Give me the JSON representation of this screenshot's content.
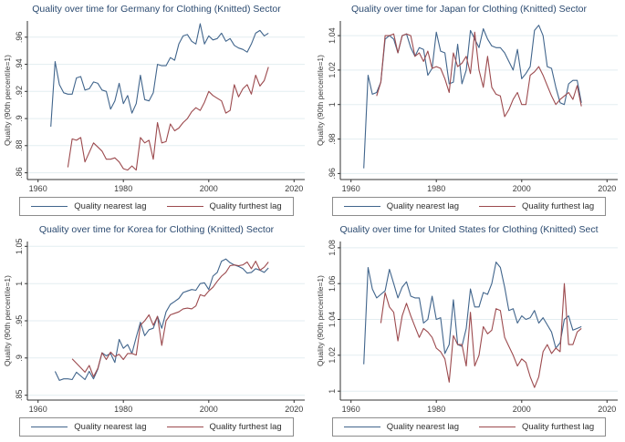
{
  "colors": {
    "background": "#ffffff",
    "title": "#2b4a70",
    "axis": "#333333",
    "tick_text": "#3c3c3c",
    "grid": "#e3edf1",
    "legend_border": "#8c8c8c",
    "nearest": "#41658c",
    "furthest": "#9c4a4e"
  },
  "legend": {
    "nearest_label": "Quality nearest lag",
    "furthest_label": "Quality furthest lag"
  },
  "chart_data": [
    {
      "type": "line",
      "title": "Quality over time for Germany for Clothing (Knitted) Sector",
      "xlabel": "",
      "ylabel": "Quality (90th percentile=1)",
      "xlim": [
        1957.5,
        2022.5
      ],
      "ylim": [
        0.855,
        0.972
      ],
      "xticks": [
        1960,
        1980,
        2000,
        2020
      ],
      "yticks": [
        0.86,
        0.88,
        0.9,
        0.92,
        0.94,
        0.96
      ],
      "ytick_labels": [
        ".86",
        ".88",
        ".9",
        ".92",
        ".94",
        ".96"
      ],
      "grid": "horizontal",
      "legend_position": "bottom",
      "series": [
        {
          "name": "Quality nearest lag",
          "color": "#41658c",
          "start_year": 1963,
          "values": [
            0.894,
            0.942,
            0.925,
            0.919,
            0.918,
            0.918,
            0.93,
            0.931,
            0.921,
            0.922,
            0.927,
            0.926,
            0.921,
            0.92,
            0.907,
            0.913,
            0.926,
            0.911,
            0.917,
            0.904,
            0.911,
            0.932,
            0.914,
            0.913,
            0.919,
            0.94,
            0.939,
            0.939,
            0.945,
            0.943,
            0.955,
            0.961,
            0.962,
            0.957,
            0.955,
            0.97,
            0.955,
            0.961,
            0.958,
            0.959,
            0.963,
            0.957,
            0.959,
            0.954,
            0.952,
            0.951,
            0.949,
            0.955,
            0.963,
            0.965,
            0.961,
            0.963
          ]
        },
        {
          "name": "Quality furthest lag",
          "color": "#9c4a4e",
          "start_year": 1967,
          "values": [
            0.864,
            0.885,
            0.884,
            0.886,
            0.868,
            0.875,
            0.882,
            0.879,
            0.876,
            0.87,
            0.87,
            0.871,
            0.868,
            0.863,
            0.862,
            0.865,
            0.862,
            0.886,
            0.882,
            0.884,
            0.87,
            0.897,
            0.882,
            0.883,
            0.896,
            0.891,
            0.893,
            0.897,
            0.9,
            0.905,
            0.908,
            0.906,
            0.912,
            0.92,
            0.917,
            0.915,
            0.913,
            0.904,
            0.906,
            0.925,
            0.916,
            0.922,
            0.925,
            0.918,
            0.932,
            0.924,
            0.928,
            0.938
          ]
        }
      ]
    },
    {
      "type": "line",
      "title": "Quality over time for Japan for Clothing (Knitted) Sector",
      "xlabel": "",
      "ylabel": "Quality (90th percentile=1)",
      "xlim": [
        1957.5,
        2022.5
      ],
      "ylim": [
        0.9565,
        1.0485
      ],
      "xticks": [
        1960,
        1980,
        2000,
        2020
      ],
      "yticks": [
        0.96,
        0.98,
        1.0,
        1.02,
        1.04
      ],
      "ytick_labels": [
        ".96",
        ".98",
        "1",
        "1.02",
        "1.04"
      ],
      "grid": "horizontal",
      "legend_position": "bottom",
      "series": [
        {
          "name": "Quality nearest lag",
          "color": "#41658c",
          "start_year": 1963,
          "values": [
            0.963,
            1.017,
            1.006,
            1.007,
            1.013,
            1.038,
            1.04,
            1.038,
            1.03,
            1.04,
            1.041,
            1.033,
            1.028,
            1.033,
            1.032,
            1.017,
            1.021,
            1.042,
            1.031,
            1.03,
            1.012,
            1.013,
            1.035,
            1.012,
            1.02,
            1.043,
            1.038,
            1.033,
            1.044,
            1.038,
            1.034,
            1.033,
            1.033,
            1.03,
            1.025,
            1.02,
            1.032,
            1.015,
            1.018,
            1.022,
            1.043,
            1.046,
            1.04,
            1.022,
            1.021,
            1.01,
            1.001,
            1.0,
            1.012,
            1.014,
            1.014,
            1.001
          ]
        },
        {
          "name": "Quality furthest lag",
          "color": "#9c4a4e",
          "start_year": 1966,
          "values": [
            1.005,
            1.013,
            1.04,
            1.04,
            1.041,
            1.03,
            1.04,
            1.041,
            1.04,
            1.028,
            1.03,
            1.025,
            1.031,
            1.021,
            1.022,
            1.021,
            1.015,
            1.007,
            1.03,
            1.022,
            1.024,
            1.028,
            1.018,
            1.042,
            1.02,
            1.01,
            1.028,
            1.01,
            1.006,
            1.005,
            0.993,
            0.997,
            1.003,
            1.007,
            1.0,
            1.0,
            1.017,
            1.019,
            1.022,
            1.017,
            1.011,
            1.005,
            1.0,
            1.003,
            1.005,
            1.007,
            1.003,
            1.011,
            0.999
          ]
        }
      ]
    },
    {
      "type": "line",
      "title": "Quality over time for Korea for Clothing (Knitted) Sector",
      "xlabel": "",
      "ylabel": "Quality (90th percentile=1)",
      "xlim": [
        1957.5,
        2022.5
      ],
      "ylim": [
        0.8435,
        1.0565
      ],
      "xticks": [
        1960,
        1980,
        2000,
        2020
      ],
      "yticks": [
        0.85,
        0.9,
        0.95,
        1.0,
        1.05
      ],
      "ytick_labels": [
        ".85",
        ".9",
        ".95",
        "1",
        "1.05"
      ],
      "grid": "horizontal",
      "legend_position": "bottom",
      "series": [
        {
          "name": "Quality nearest lag",
          "color": "#41658c",
          "start_year": 1964,
          "values": [
            0.882,
            0.87,
            0.872,
            0.872,
            0.871,
            0.881,
            0.876,
            0.871,
            0.882,
            0.872,
            0.885,
            0.907,
            0.903,
            0.906,
            0.894,
            0.925,
            0.913,
            0.918,
            0.906,
            0.928,
            0.948,
            0.93,
            0.938,
            0.94,
            0.956,
            0.94,
            0.962,
            0.972,
            0.976,
            0.98,
            0.988,
            0.99,
            0.992,
            0.991,
            1.0,
            1.001,
            0.992,
            1.01,
            1.015,
            1.03,
            1.033,
            1.028,
            1.025,
            1.023,
            1.02,
            1.014,
            1.015,
            1.02,
            1.018,
            1.015,
            1.021
          ]
        },
        {
          "name": "Quality furthest lag",
          "color": "#9c4a4e",
          "start_year": 1968,
          "values": [
            0.899,
            0.893,
            0.887,
            0.881,
            0.89,
            0.875,
            0.886,
            0.907,
            0.898,
            0.908,
            0.902,
            0.905,
            0.898,
            0.906,
            0.906,
            0.904,
            0.944,
            0.95,
            0.958,
            0.944,
            0.956,
            0.917,
            0.95,
            0.958,
            0.96,
            0.962,
            0.966,
            0.967,
            0.966,
            0.97,
            0.985,
            0.983,
            0.99,
            0.995,
            1.003,
            1.01,
            1.015,
            1.024,
            1.025,
            1.024,
            1.025,
            1.029,
            1.02,
            1.03,
            1.018,
            1.022,
            1.029
          ]
        }
      ]
    },
    {
      "type": "line",
      "title": "Quality over time for United States for Clothing (Knitted) Sect",
      "xlabel": "",
      "ylabel": "Quality (90th percentile=1)",
      "xlim": [
        1957.5,
        2022.5
      ],
      "ylim": [
        0.995,
        1.0835
      ],
      "xticks": [
        1960,
        1980,
        2000,
        2020
      ],
      "yticks": [
        1.0,
        1.02,
        1.04,
        1.06,
        1.08
      ],
      "ytick_labels": [
        "1",
        "1.02",
        "1.04",
        "1.06",
        "1.08"
      ],
      "grid": "horizontal",
      "legend_position": "bottom",
      "series": [
        {
          "name": "Quality nearest lag",
          "color": "#41658c",
          "start_year": 1963,
          "values": [
            1.015,
            1.069,
            1.057,
            1.052,
            1.054,
            1.056,
            1.068,
            1.06,
            1.052,
            1.058,
            1.061,
            1.053,
            1.052,
            1.052,
            1.038,
            1.04,
            1.053,
            1.04,
            1.041,
            1.021,
            1.026,
            1.051,
            1.026,
            1.025,
            1.035,
            1.057,
            1.047,
            1.047,
            1.055,
            1.054,
            1.06,
            1.072,
            1.069,
            1.058,
            1.045,
            1.046,
            1.038,
            1.042,
            1.04,
            1.041,
            1.045,
            1.038,
            1.041,
            1.037,
            1.033,
            1.024,
            1.027,
            1.04,
            1.042,
            1.034,
            1.035,
            1.036
          ]
        },
        {
          "name": "Quality furthest lag",
          "color": "#9c4a4e",
          "start_year": 1967,
          "values": [
            1.038,
            1.055,
            1.047,
            1.044,
            1.028,
            1.042,
            1.049,
            1.042,
            1.036,
            1.03,
            1.035,
            1.033,
            1.03,
            1.024,
            1.022,
            1.018,
            1.005,
            1.031,
            1.026,
            1.026,
            1.014,
            1.044,
            1.014,
            1.02,
            1.036,
            1.032,
            1.034,
            1.046,
            1.045,
            1.03,
            1.025,
            1.02,
            1.014,
            1.018,
            1.016,
            1.008,
            1.002,
            1.008,
            1.022,
            1.026,
            1.021,
            1.024,
            1.022,
            1.06,
            1.026,
            1.026,
            1.033,
            1.035
          ]
        }
      ]
    }
  ]
}
